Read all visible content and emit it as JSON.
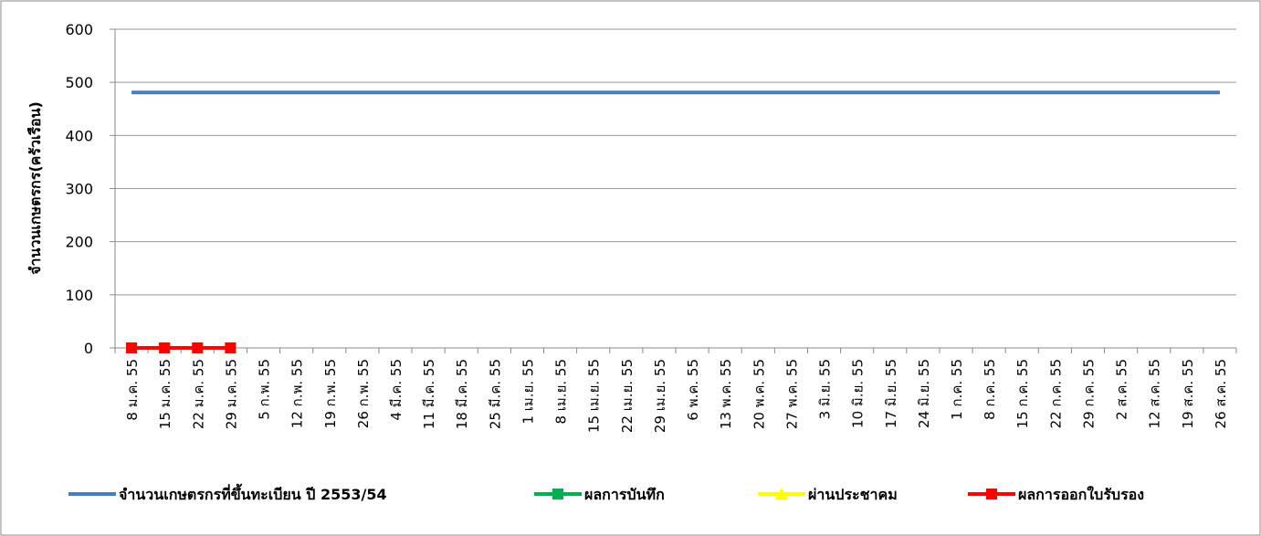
{
  "chart_data": {
    "type": "line",
    "y_label": "จำนวนเกษตรกร(ครัวเรือน)",
    "categories": [
      "8 ม.ค. 55",
      "15 ม.ค. 55",
      "22 ม.ค. 55",
      "29 ม.ค. 55",
      "5 ก.พ. 55",
      "12 ก.พ. 55",
      "19 ก.พ. 55",
      "26 ก.พ. 55",
      "4 มี.ค. 55",
      "11 มี.ค. 55",
      "18 มี.ค. 55",
      "25 มี.ค. 55",
      "1 เม.ย. 55",
      "8 เม.ย. 55",
      "15 เม.ย. 55",
      "22 เม.ย. 55",
      "29 เม.ย. 55",
      "6 พ.ค. 55",
      "13 พ.ค. 55",
      "20 พ.ค. 55",
      "27 พ.ค. 55",
      "3 มิ.ย. 55",
      "10 มิ.ย. 55",
      "17 มิ.ย. 55",
      "24 มิ.ย. 55",
      "1 ก.ค. 55",
      "8 ก.ค. 55",
      "15 ก.ค. 55",
      "22 ก.ค. 55",
      "29 ก.ค. 55",
      "2 ส.ค. 55",
      "12 ส.ค. 55",
      "19 ส.ค. 55",
      "26 ส.ค. 55"
    ],
    "series": [
      {
        "name": "จำนวนเกษตรกรที่ขึ้นทะเบียน ปี 2553/54",
        "color": "#4a7ebb",
        "marker": "none",
        "values": [
          481,
          481,
          481,
          481,
          481,
          481,
          481,
          481,
          481,
          481,
          481,
          481,
          481,
          481,
          481,
          481,
          481,
          481,
          481,
          481,
          481,
          481,
          481,
          481,
          481,
          481,
          481,
          481,
          481,
          481,
          481,
          481,
          481,
          481
        ]
      },
      {
        "name": "ผลการบันทึก",
        "color": "#00b050",
        "marker": "square",
        "values": [
          0,
          0,
          0,
          0,
          null,
          null,
          null,
          null,
          null,
          null,
          null,
          null,
          null,
          null,
          null,
          null,
          null,
          null,
          null,
          null,
          null,
          null,
          null,
          null,
          null,
          null,
          null,
          null,
          null,
          null,
          null,
          null,
          null,
          null
        ]
      },
      {
        "name": "ผ่านประชาคม",
        "color": "#ffff00",
        "marker": "triangle",
        "values": [
          0,
          0,
          0,
          0,
          null,
          null,
          null,
          null,
          null,
          null,
          null,
          null,
          null,
          null,
          null,
          null,
          null,
          null,
          null,
          null,
          null,
          null,
          null,
          null,
          null,
          null,
          null,
          null,
          null,
          null,
          null,
          null,
          null,
          null
        ]
      },
      {
        "name": "ผลการออกใบรับรอง",
        "color": "#ff0000",
        "marker": "square",
        "values": [
          0,
          0,
          0,
          0,
          null,
          null,
          null,
          null,
          null,
          null,
          null,
          null,
          null,
          null,
          null,
          null,
          null,
          null,
          null,
          null,
          null,
          null,
          null,
          null,
          null,
          null,
          null,
          null,
          null,
          null,
          null,
          null,
          null,
          null
        ]
      }
    ],
    "ylim": [
      0,
      600
    ],
    "yticks": [
      0,
      100,
      200,
      300,
      400,
      500,
      600
    ],
    "grid": true,
    "legend": "bottom"
  }
}
